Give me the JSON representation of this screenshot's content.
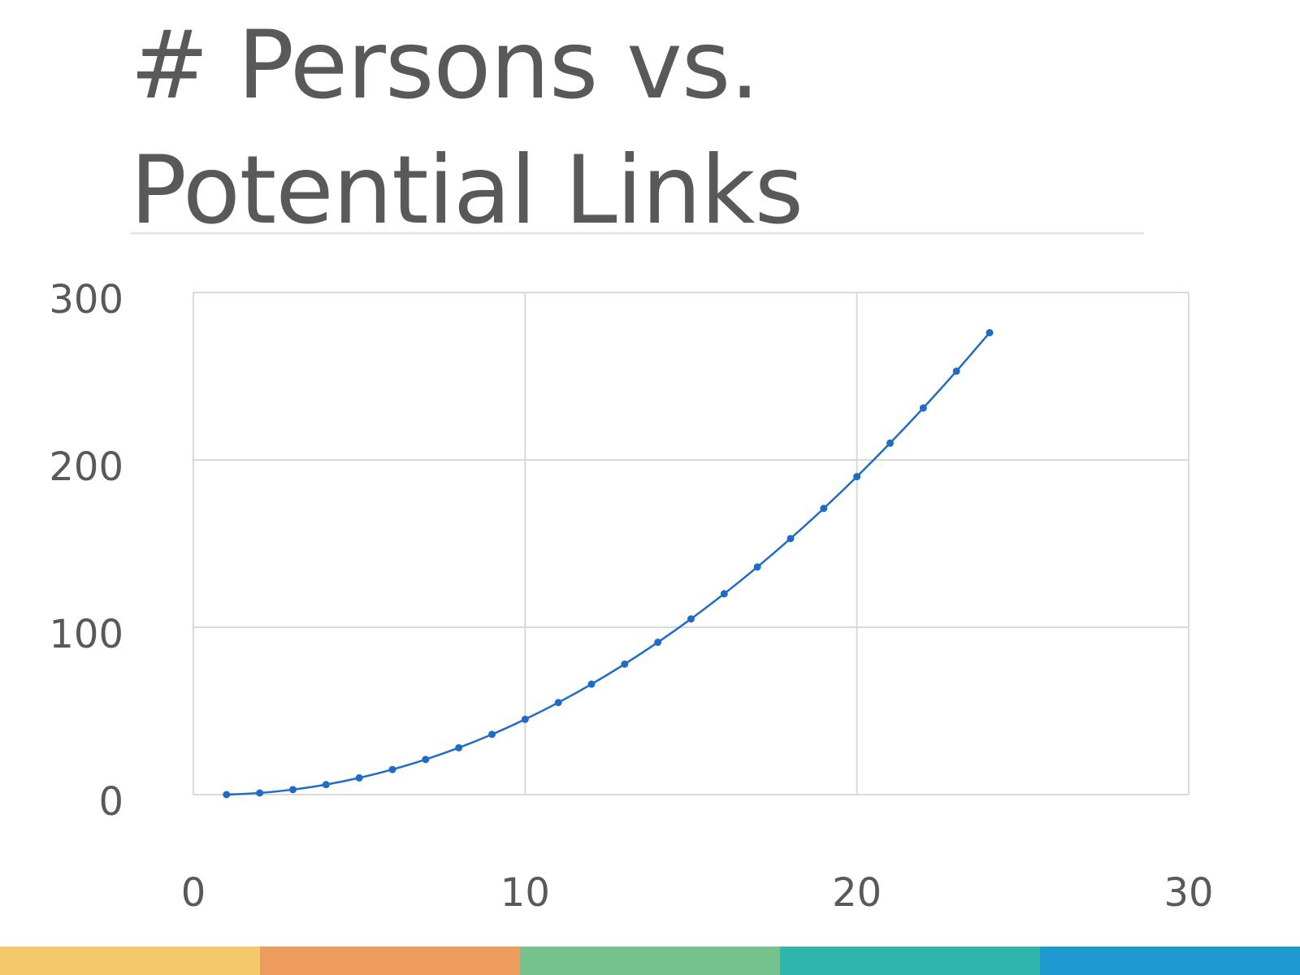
{
  "chart_data": {
    "type": "scatter",
    "title": "# Persons vs. Potential Links",
    "x": [
      1,
      2,
      3,
      4,
      5,
      6,
      7,
      8,
      9,
      10,
      11,
      12,
      13,
      14,
      15,
      16,
      17,
      18,
      19,
      20,
      21,
      22,
      23,
      24
    ],
    "values": [
      0,
      1,
      3,
      6,
      10,
      15,
      21,
      28,
      36,
      45,
      55,
      66,
      78,
      91,
      105,
      120,
      136,
      153,
      171,
      190,
      210,
      231,
      253,
      276
    ],
    "color": "#1f6cc4",
    "trendline": true,
    "xlim": [
      0,
      30
    ],
    "xticks": [
      0,
      10,
      20,
      30
    ],
    "ylim": [
      0,
      300
    ],
    "yticks": [
      0,
      100,
      200,
      300
    ],
    "grid": true
  }
}
